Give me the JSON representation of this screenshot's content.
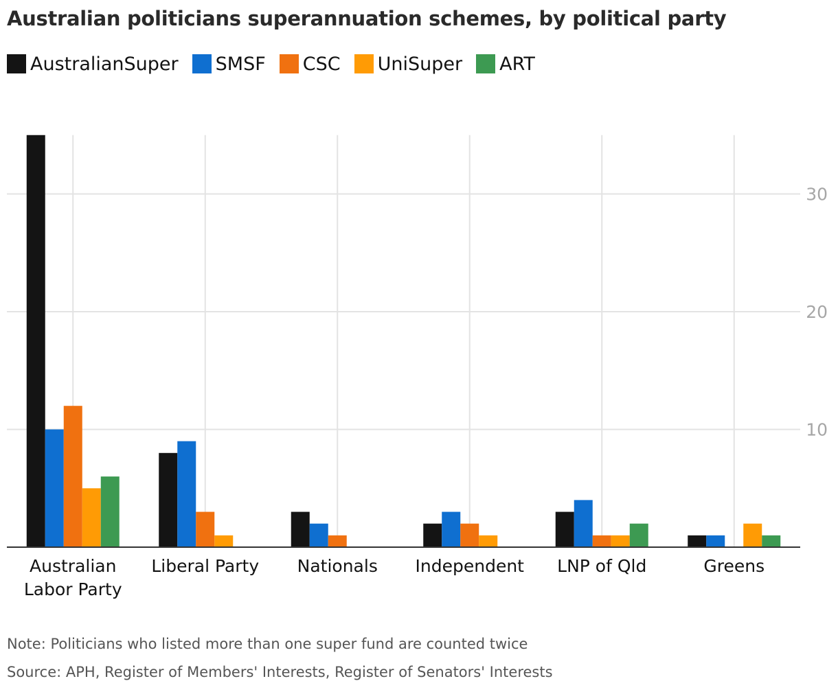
{
  "title": "Australian politicians superannuation schemes, by political party",
  "note": "Note: Politicians who listed more than one super fund are counted twice",
  "source": "Source: APH, Register of Members' Interests, Register of Senators' Interests",
  "chart_data": {
    "type": "bar",
    "title": "Australian politicians superannuation schemes, by political party",
    "xlabel": "",
    "ylabel": "",
    "ylim": [
      0,
      35
    ],
    "yticks": [
      10,
      20,
      30
    ],
    "grid": true,
    "legend_position": "top-left",
    "categories": [
      "Australian Labor Party",
      "Liberal Party",
      "Nationals",
      "Independent",
      "LNP of Qld",
      "Greens"
    ],
    "category_lines": [
      [
        "Australian",
        "Labor Party"
      ],
      [
        "Liberal Party"
      ],
      [
        "Nationals"
      ],
      [
        "Independent"
      ],
      [
        "LNP of Qld"
      ],
      [
        "Greens"
      ]
    ],
    "series": [
      {
        "name": "AustralianSuper",
        "color": "#141414",
        "values": [
          35,
          8,
          3,
          2,
          3,
          1
        ]
      },
      {
        "name": "SMSF",
        "color": "#0f6fd0",
        "values": [
          10,
          9,
          2,
          3,
          4,
          1
        ]
      },
      {
        "name": "CSC",
        "color": "#f07110",
        "values": [
          12,
          3,
          1,
          2,
          1,
          0
        ]
      },
      {
        "name": "UniSuper",
        "color": "#ff9b05",
        "values": [
          5,
          1,
          0,
          1,
          1,
          2
        ]
      },
      {
        "name": "ART",
        "color": "#3d9a52",
        "values": [
          6,
          0,
          0,
          0,
          2,
          1
        ]
      }
    ]
  }
}
